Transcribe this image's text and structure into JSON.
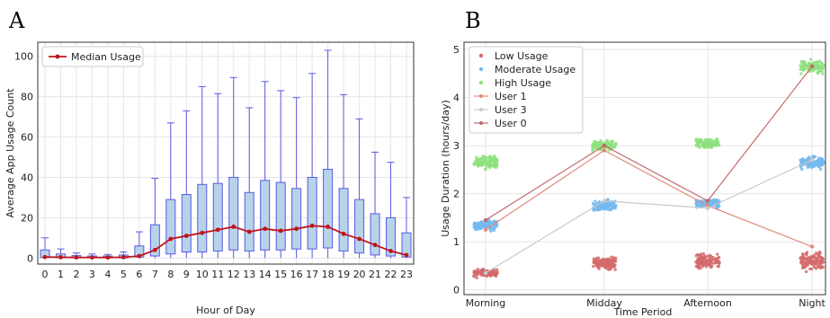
{
  "panels": [
    {
      "letter": "A",
      "chart_data": {
        "type": "box",
        "xlabel": "Hour of Day",
        "ylabel": "Average App Usage Count",
        "categories": [
          "0",
          "1",
          "2",
          "3",
          "4",
          "5",
          "6",
          "7",
          "8",
          "9",
          "10",
          "11",
          "12",
          "13",
          "14",
          "15",
          "16",
          "17",
          "18",
          "19",
          "20",
          "21",
          "22",
          "23"
        ],
        "ylim": [
          -3,
          107
        ],
        "yticks": [
          0,
          20,
          40,
          60,
          80,
          100
        ],
        "grid": true,
        "legend_position": "top-left",
        "colors": {
          "box_fill": "#b7d3ea",
          "box_edge": "#5a5ae0",
          "whisker": "#5a5ae0",
          "median_line": "#c0141b"
        },
        "boxes": [
          {
            "whislo": 0,
            "q1": 0.3,
            "med": 0.5,
            "q3": 4,
            "whishi": 10
          },
          {
            "whislo": 0,
            "q1": 0.2,
            "med": 0.4,
            "q3": 2,
            "whishi": 4.5
          },
          {
            "whislo": 0,
            "q1": 0.1,
            "med": 0.3,
            "q3": 1.2,
            "whishi": 2.5
          },
          {
            "whislo": 0,
            "q1": 0.1,
            "med": 0.3,
            "q3": 1,
            "whishi": 2
          },
          {
            "whislo": 0,
            "q1": 0.1,
            "med": 0.3,
            "q3": 1,
            "whishi": 1.8
          },
          {
            "whislo": 0,
            "q1": 0.1,
            "med": 0.4,
            "q3": 1.5,
            "whishi": 3
          },
          {
            "whislo": 0,
            "q1": 0.5,
            "med": 1,
            "q3": 6,
            "whishi": 13
          },
          {
            "whislo": 0,
            "q1": 1,
            "med": 4,
            "q3": 16.5,
            "whishi": 39.5
          },
          {
            "whislo": 0,
            "q1": 2,
            "med": 9.5,
            "q3": 29,
            "whishi": 67
          },
          {
            "whislo": 0,
            "q1": 3,
            "med": 11,
            "q3": 31.5,
            "whishi": 73
          },
          {
            "whislo": 0,
            "q1": 3,
            "med": 12.5,
            "q3": 36.5,
            "whishi": 85
          },
          {
            "whislo": 0,
            "q1": 3.5,
            "med": 14,
            "q3": 37,
            "whishi": 81.5
          },
          {
            "whislo": 0,
            "q1": 4,
            "med": 15.5,
            "q3": 40,
            "whishi": 89.5
          },
          {
            "whislo": 0,
            "q1": 3.5,
            "med": 13,
            "q3": 32.5,
            "whishi": 74.5
          },
          {
            "whislo": 0,
            "q1": 4,
            "med": 14.5,
            "q3": 38.5,
            "whishi": 87.5
          },
          {
            "whislo": 0,
            "q1": 4,
            "med": 13.5,
            "q3": 37.5,
            "whishi": 83
          },
          {
            "whislo": 0,
            "q1": 4.5,
            "med": 14.5,
            "q3": 34.5,
            "whishi": 79.5
          },
          {
            "whislo": 0,
            "q1": 4.5,
            "med": 16,
            "q3": 40,
            "whishi": 91.5
          },
          {
            "whislo": 0,
            "q1": 5,
            "med": 15.5,
            "q3": 44,
            "whishi": 103
          },
          {
            "whislo": 0,
            "q1": 3.5,
            "med": 12,
            "q3": 34.5,
            "whishi": 81
          },
          {
            "whislo": 0,
            "q1": 2.5,
            "med": 9.5,
            "q3": 29,
            "whishi": 69
          },
          {
            "whislo": 0,
            "q1": 1.5,
            "med": 6.5,
            "q3": 22,
            "whishi": 52.5
          },
          {
            "whislo": 0,
            "q1": 1,
            "med": 3.5,
            "q3": 20,
            "whishi": 47.5
          },
          {
            "whislo": 0,
            "q1": 0.5,
            "med": 1.5,
            "q3": 12.5,
            "whishi": 30
          }
        ],
        "series": [
          {
            "name": "Median Usage",
            "values": [
              0.5,
              0.4,
              0.3,
              0.3,
              0.3,
              0.4,
              1,
              4,
              9.5,
              11,
              12.5,
              14,
              15.5,
              13,
              14.5,
              13.5,
              14.5,
              16,
              15.5,
              12,
              9.5,
              6.5,
              3.5,
              1.5
            ]
          }
        ]
      }
    },
    {
      "letter": "B",
      "chart_data": {
        "type": "scatter",
        "xlabel": "Time Period",
        "ylabel": "Usage Duration (hours/day)",
        "categories": [
          "Morning",
          "Midday",
          "Afternoon",
          "Night"
        ],
        "ylim": [
          -0.1,
          5.15
        ],
        "yticks": [
          0,
          1,
          2,
          3,
          4,
          5
        ],
        "grid": true,
        "legend_position": "top-left",
        "series": [
          {
            "name": "Low Usage",
            "kind": "cloud",
            "color": "#d46a6a",
            "centers": [
              0.35,
              0.55,
              0.6,
              0.6
            ],
            "spreads": [
              0.12,
              0.18,
              0.2,
              0.25
            ]
          },
          {
            "name": "Moderate Usage",
            "kind": "cloud",
            "color": "#74b8ee",
            "centers": [
              1.35,
              1.75,
              1.8,
              2.65
            ],
            "spreads": [
              0.15,
              0.15,
              0.12,
              0.2
            ]
          },
          {
            "name": "High Usage",
            "kind": "cloud",
            "color": "#8fe07f",
            "centers": [
              2.65,
              3.0,
              3.05,
              4.65
            ],
            "spreads": [
              0.18,
              0.12,
              0.15,
              0.2
            ]
          },
          {
            "name": "User 1",
            "kind": "line",
            "color": "#e28a7a",
            "values": [
              1.25,
              2.9,
              1.75,
              0.9
            ]
          },
          {
            "name": "User 3",
            "kind": "line",
            "color": "#c9c9cf",
            "values": [
              0.35,
              1.85,
              1.7,
              2.7
            ]
          },
          {
            "name": "User 0",
            "kind": "line",
            "color": "#c26a6a",
            "values": [
              1.45,
              3.0,
              1.85,
              4.65
            ]
          }
        ]
      }
    }
  ]
}
